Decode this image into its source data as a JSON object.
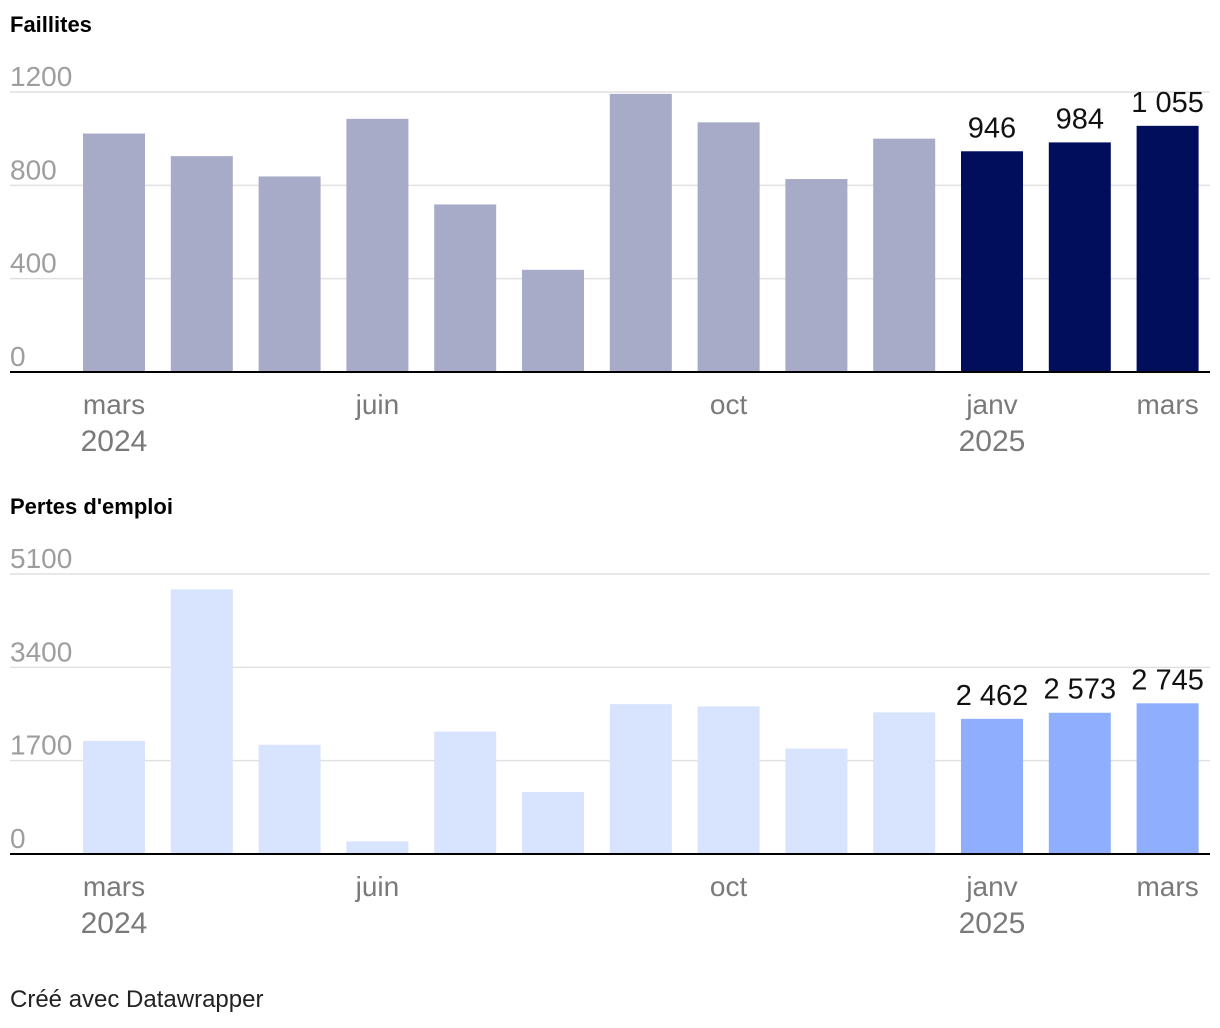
{
  "colors": {
    "grid": "#e1e1e1",
    "axis": "#000000",
    "tick_text": "#9e9e9e",
    "category_text": "#7a7a7a",
    "label_text": "#111111"
  },
  "chart_data": [
    {
      "type": "bar",
      "title": "Faillites",
      "categories": [
        "mars 2024",
        "avr 2024",
        "mai 2024",
        "juin 2024",
        "juil 2024",
        "août 2024",
        "sept 2024",
        "oct 2024",
        "nov 2024",
        "déc 2024",
        "janv 2025",
        "févr 2025",
        "mars 2025"
      ],
      "values": [
        1022,
        925,
        838,
        1085,
        718,
        438,
        1192,
        1070,
        827,
        1000,
        946,
        984,
        1055
      ],
      "highlight": [
        false,
        false,
        false,
        false,
        false,
        false,
        false,
        false,
        false,
        false,
        true,
        true,
        true
      ],
      "value_labels": [
        "",
        "",
        "",
        "",
        "",
        "",
        "",
        "",
        "",
        "",
        "946",
        "984",
        "1 055"
      ],
      "yticks": [
        0,
        400,
        800,
        1200
      ],
      "ytick_labels": [
        "0",
        "400",
        "800",
        "1200"
      ],
      "ylim": [
        0,
        1200
      ],
      "xticks": [
        {
          "index": 0,
          "label": "mars",
          "sub": "2024"
        },
        {
          "index": 3,
          "label": "juin",
          "sub": ""
        },
        {
          "index": 7,
          "label": "oct",
          "sub": ""
        },
        {
          "index": 10,
          "label": "janv",
          "sub": "2025"
        },
        {
          "index": 12,
          "label": "mars",
          "sub": ""
        }
      ],
      "colors": {
        "base": "#a7abc8",
        "highlight": "#000e5c"
      }
    },
    {
      "type": "bar",
      "title": "Pertes d'emploi",
      "categories": [
        "mars 2024",
        "avr 2024",
        "mai 2024",
        "juin 2024",
        "juil 2024",
        "août 2024",
        "sept 2024",
        "oct 2024",
        "nov 2024",
        "déc 2024",
        "janv 2025",
        "févr 2025",
        "mars 2025"
      ],
      "values": [
        2060,
        4820,
        1990,
        230,
        2230,
        1130,
        2730,
        2690,
        1920,
        2580,
        2462,
        2573,
        2745
      ],
      "highlight": [
        false,
        false,
        false,
        false,
        false,
        false,
        false,
        false,
        false,
        false,
        true,
        true,
        true
      ],
      "value_labels": [
        "",
        "",
        "",
        "",
        "",
        "",
        "",
        "",
        "",
        "",
        "2 462",
        "2 573",
        "2 745"
      ],
      "yticks": [
        0,
        1700,
        3400,
        5100
      ],
      "ytick_labels": [
        "0",
        "1700",
        "3400",
        "5100"
      ],
      "ylim": [
        0,
        5100
      ],
      "xticks": [
        {
          "index": 0,
          "label": "mars",
          "sub": "2024"
        },
        {
          "index": 3,
          "label": "juin",
          "sub": ""
        },
        {
          "index": 7,
          "label": "oct",
          "sub": ""
        },
        {
          "index": 10,
          "label": "janv",
          "sub": "2025"
        },
        {
          "index": 12,
          "label": "mars",
          "sub": ""
        }
      ],
      "colors": {
        "base": "#d8e3fe",
        "highlight": "#8faefd"
      }
    }
  ],
  "footer": {
    "credit": "Créé avec Datawrapper"
  }
}
